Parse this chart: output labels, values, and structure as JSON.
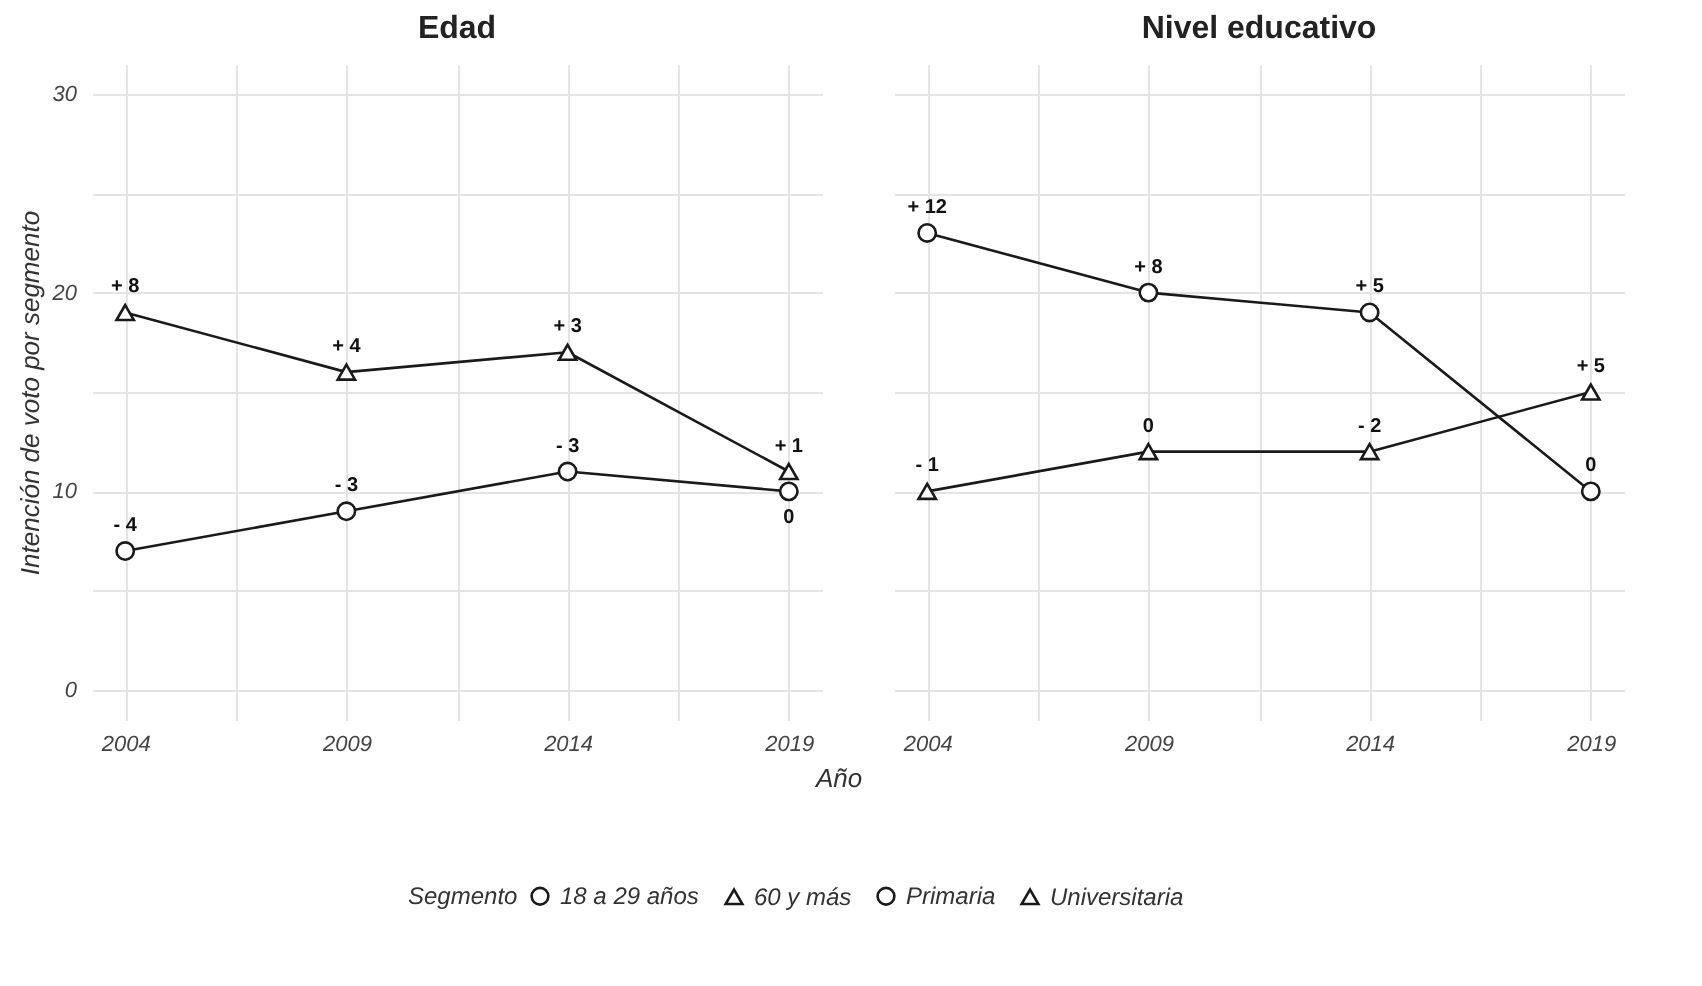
{
  "chart_data": [
    {
      "type": "line",
      "title": "Edad",
      "xlabel": "Año",
      "ylabel": "Intención de voto por segmento",
      "legend_title": "Segmento",
      "legend": "bottom",
      "grid": true,
      "x": [
        2004,
        2009,
        2014,
        2019
      ],
      "xlim": [
        2003.25,
        2019.75
      ],
      "xticks": [
        2004,
        {
          "value": 2006.5,
          "label": null
        },
        2009,
        {
          "value": 2011.5,
          "label": null
        },
        2014,
        {
          "value": 2016.5,
          "label": null
        },
        2019
      ],
      "ylim": [
        -1.5,
        31.5
      ],
      "yticks": [
        0,
        {
          "value": 5,
          "label": null
        },
        10,
        {
          "value": 15,
          "label": null
        },
        20,
        {
          "value": 25,
          "label": null
        },
        30
      ],
      "series": [
        {
          "name": "18 a 29 años",
          "color": "#1a1a1a",
          "marker": "circle",
          "values": [
            7,
            9,
            11,
            10
          ]
        },
        {
          "name": "60 y más",
          "color": "#1a1a1a",
          "marker": "triangle",
          "values": [
            19,
            16,
            17,
            11
          ]
        }
      ],
      "annotations": [
        {
          "text": "- 4",
          "x": 2004,
          "y": 7
        },
        {
          "text": "- 3",
          "x": 2009,
          "y": 9
        },
        {
          "text": "- 3",
          "x": 2014,
          "y": 11
        },
        {
          "text": "0",
          "x": 2019,
          "y": 10
        },
        {
          "text": "+ 8",
          "x": 2004,
          "y": 19
        },
        {
          "text": "+ 4",
          "x": 2009,
          "y": 16
        },
        {
          "text": "+ 3",
          "x": 2014,
          "y": 17
        },
        {
          "text": "+ 1",
          "x": 2019,
          "y": 11
        }
      ]
    },
    {
      "type": "line",
      "title": "Nivel educativo",
      "legend": "bottom",
      "grid": true,
      "tick_labels": "x",
      "x": [
        2004,
        2009,
        2014,
        2019
      ],
      "xlim": [
        2003.25,
        2019.75
      ],
      "xticks": [
        2004,
        {
          "value": 2006.5,
          "label": null
        },
        2009,
        {
          "value": 2011.5,
          "label": null
        },
        2014,
        {
          "value": 2016.5,
          "label": null
        },
        2019
      ],
      "ylim": [
        -1.5,
        31.5
      ],
      "yticks": [
        0,
        {
          "value": 5,
          "label": null
        },
        10,
        {
          "value": 15,
          "label": null
        },
        20,
        {
          "value": 25,
          "label": null
        },
        30
      ],
      "series": [
        {
          "name": "Primaria",
          "color": "#1a1a1a",
          "marker": "circle",
          "values": [
            23,
            20,
            19,
            10
          ]
        },
        {
          "name": "Universitaria",
          "color": "#1a1a1a",
          "marker": "triangle",
          "values": [
            10,
            12,
            12,
            15
          ]
        }
      ],
      "annotations": [
        {
          "text": "+ 12",
          "x": 2004,
          "y": 23
        },
        {
          "text": "+ 8",
          "x": 2009,
          "y": 20
        },
        {
          "text": "+ 5",
          "x": 2014,
          "y": 19
        },
        {
          "text": "0",
          "x": 2019,
          "y": 10
        },
        {
          "text": "- 1",
          "x": 2004,
          "y": 10
        },
        {
          "text": "0",
          "x": 2009,
          "y": 12
        },
        {
          "text": "- 2",
          "x": 2014,
          "y": 12
        },
        {
          "text": "+ 5",
          "x": 2019,
          "y": 15
        }
      ]
    }
  ]
}
